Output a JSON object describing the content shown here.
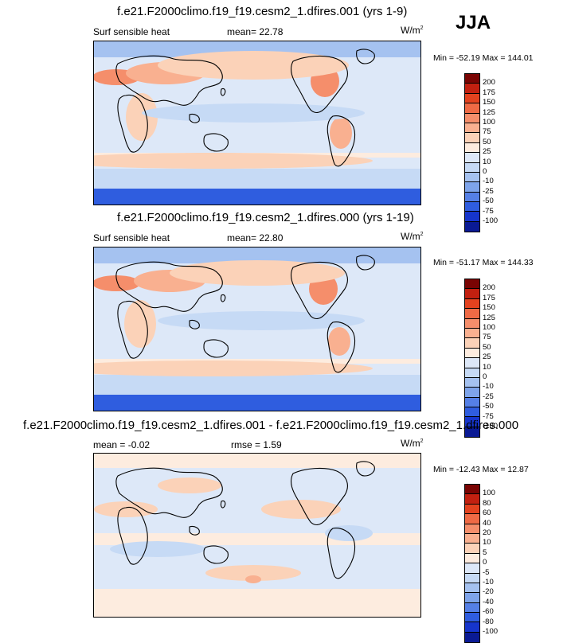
{
  "season_label": "JJA",
  "panels": [
    {
      "title": "f.e21.F2000climo.f19_f19.cesm2_1.dfires.001 (yrs 1-9)",
      "left_label": "Surf sensible heat",
      "center_label": "mean=  22.78",
      "units": "W/m",
      "units_exp": "2",
      "minmax": "Min = -52.19 Max = 144.01",
      "colorbar_labels": [
        "200",
        "175",
        "150",
        "125",
        "100",
        "75",
        "50",
        "25",
        "10",
        "0",
        "-10",
        "-25",
        "-50",
        "-75",
        "-100"
      ],
      "colorbar_colors": [
        "#7a0403",
        "#c22010",
        "#e3421f",
        "#ef6a45",
        "#f58e6b",
        "#f9b090",
        "#fbd2b8",
        "#fdecdf",
        "#dde8f8",
        "#c6daf5",
        "#a5c2f0",
        "#7ea4ea",
        "#5580e6",
        "#2f5ddf",
        "#1635cc",
        "#0a1a94"
      ]
    },
    {
      "title": "f.e21.F2000climo.f19_f19.cesm2_1.dfires.000 (yrs 1-19)",
      "left_label": "Surf sensible heat",
      "center_label": "mean=  22.80",
      "units": "W/m",
      "units_exp": "2",
      "minmax": "Min = -51.17 Max = 144.33",
      "colorbar_labels": [
        "200",
        "175",
        "150",
        "125",
        "100",
        "75",
        "50",
        "25",
        "10",
        "0",
        "-10",
        "-25",
        "-50",
        "-75",
        "-100"
      ],
      "colorbar_colors": [
        "#7a0403",
        "#c22010",
        "#e3421f",
        "#ef6a45",
        "#f58e6b",
        "#f9b090",
        "#fbd2b8",
        "#fdecdf",
        "#dde8f8",
        "#c6daf5",
        "#a5c2f0",
        "#7ea4ea",
        "#5580e6",
        "#2f5ddf",
        "#1635cc",
        "#0a1a94"
      ]
    },
    {
      "title": "f.e21.F2000climo.f19_f19.cesm2_1.dfires.001 - f.e21.F2000climo.f19_f19.cesm2_1.dfires.000",
      "left_label": "mean =  -0.02",
      "center_label": "rmse =   1.59",
      "units": "W/m",
      "units_exp": "2",
      "minmax": "Min = -12.43 Max =  12.87",
      "colorbar_labels": [
        "100",
        "80",
        "60",
        "40",
        "20",
        "10",
        "5",
        "0",
        "-5",
        "-10",
        "-20",
        "-40",
        "-60",
        "-80",
        "-100"
      ],
      "colorbar_colors": [
        "#7a0403",
        "#c22010",
        "#e3421f",
        "#ef6a45",
        "#f58e6b",
        "#f9b090",
        "#fbd2b8",
        "#fdecdf",
        "#dde8f8",
        "#c6daf5",
        "#a5c2f0",
        "#7ea4ea",
        "#5580e6",
        "#2f5ddf",
        "#1635cc",
        "#0a1a94"
      ]
    }
  ]
}
